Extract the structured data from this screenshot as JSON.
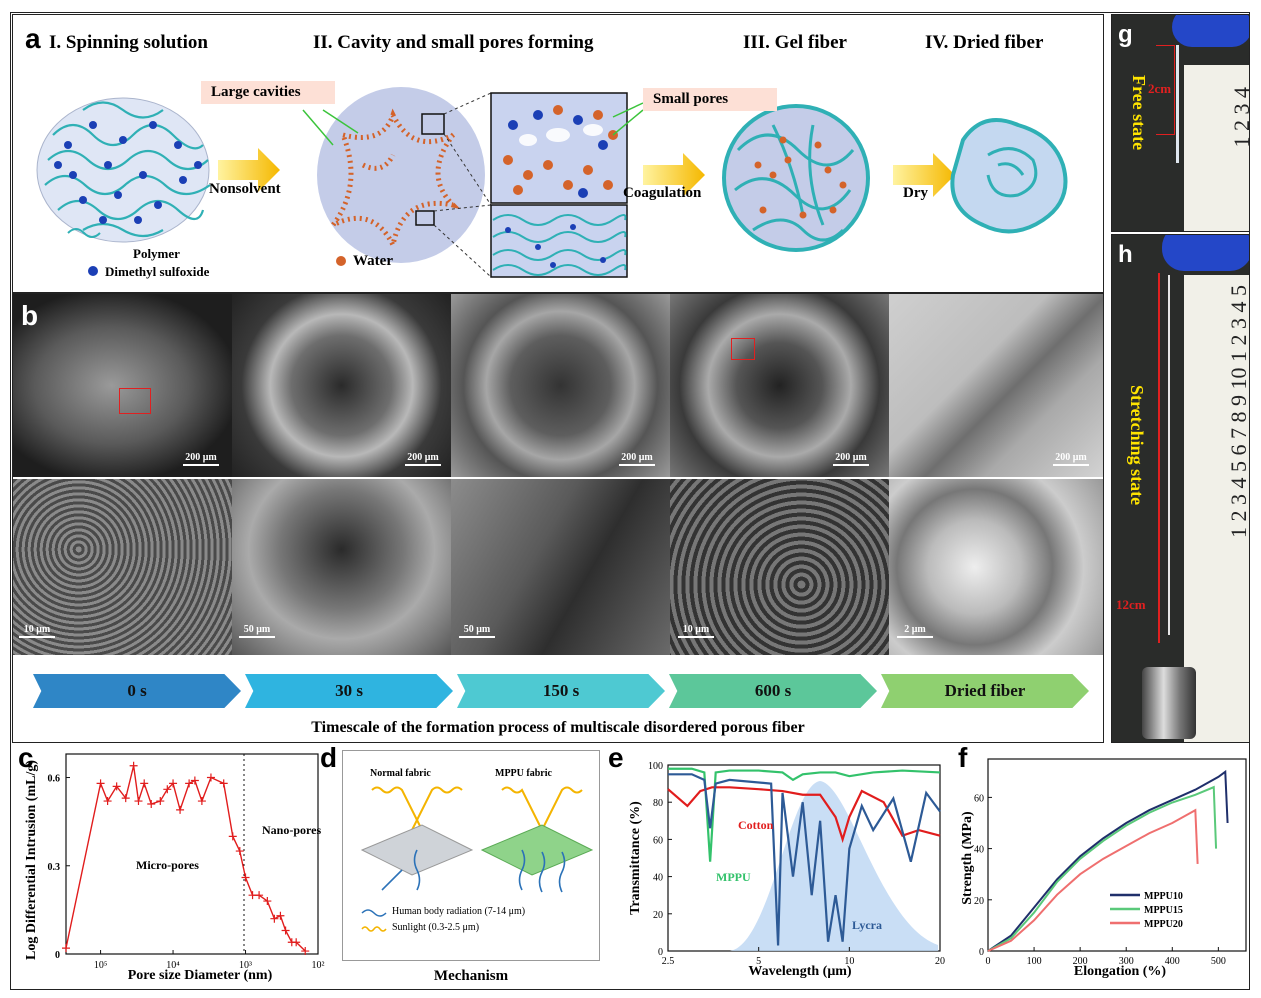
{
  "panel_a": {
    "label": "a",
    "stages": [
      "I. Spinning solution",
      "II. Cavity and small pores forming",
      "III. Gel fiber",
      "IV. Dried fiber"
    ],
    "large_cavities": "Large cavities",
    "small_pores": "Small pores",
    "nonsolvent": "Nonsolvent",
    "coagulation": "Coagulation",
    "dry": "Dry",
    "legend_polymer": "Polymer",
    "legend_dmso": "Dimethyl sulfoxide",
    "legend_water": "Water"
  },
  "panel_b": {
    "label": "b",
    "top_scales": [
      "200 μm",
      "200 μm",
      "200 μm",
      "200 μm",
      "200 μm"
    ],
    "bottom_scales": [
      "10 μm",
      "50 μm",
      "50 μm",
      "10 μm",
      "2 μm"
    ],
    "steps": [
      "0 s",
      "30 s",
      "150 s",
      "600 s",
      "Dried fiber"
    ],
    "step_colors": [
      "#2f86c6",
      "#2fb4e0",
      "#4ec9d2",
      "#5cc79a",
      "#8fd070"
    ],
    "timescale_caption": "Timescale of the formation process of multiscale disordered porous fiber"
  },
  "panel_g": {
    "label": "g",
    "state": "Free state",
    "length": "2cm",
    "ruler": [
      "1",
      "2",
      "3",
      "4"
    ]
  },
  "panel_h": {
    "label": "h",
    "state": "Stretching state",
    "length": "12cm",
    "ruler": [
      "1",
      "2",
      "3",
      "4",
      "5",
      "6",
      "7",
      "8",
      "9",
      "10",
      "1",
      "2",
      "3",
      "4",
      "5"
    ]
  },
  "panel_c": {
    "label": "c",
    "ylabel": "Log Differential Intrusion (mL/g)",
    "xlabel": "Pore size Diameter (nm)",
    "micro": "Micro-pores",
    "nano": "Nano-pores",
    "yticks": [
      "0",
      "0.3",
      "0.6"
    ],
    "xticks": [
      "10⁵",
      "10⁴",
      "10³",
      "10²"
    ]
  },
  "panel_d": {
    "label": "d",
    "normal": "Normal fabric",
    "mppu": "MPPU fabric",
    "legend_body": "Human body radiation (7-14 μm)",
    "legend_sun": "Sunlight (0.3-2.5 μm)",
    "caption": "Mechanism"
  },
  "panel_e": {
    "label": "e",
    "ylabel": "Transmittance (%)",
    "xlabel": "Wavelength (μm)",
    "yticks": [
      "0",
      "20",
      "40",
      "60",
      "80",
      "100"
    ],
    "xticks": [
      "2.5",
      "5",
      "10",
      "20"
    ],
    "series": [
      "Cotton",
      "MPPU",
      "Lycra"
    ]
  },
  "panel_f": {
    "label": "f",
    "ylabel": "Strength (MPa)",
    "xlabel": "Elongation (%)",
    "yticks": [
      "0",
      "20",
      "40",
      "60"
    ],
    "xticks": [
      "0",
      "100",
      "200",
      "300",
      "400",
      "500"
    ],
    "legend": [
      "MPPU10",
      "MPPU15",
      "MPPU20"
    ],
    "colors": [
      "#1f2f6b",
      "#5ac97a",
      "#ef6f6f"
    ]
  },
  "chart_data": [
    {
      "type": "scatter",
      "panel": "c",
      "xlabel": "Pore size Diameter (nm)",
      "ylabel": "Log Differential Intrusion (mL/g)",
      "x_scale": "log-reversed",
      "xlim": [
        300000,
        100
      ],
      "ylim": [
        0,
        0.68
      ],
      "series": [
        {
          "x": [
            300000,
            100000,
            80000,
            60000,
            45000,
            35000,
            30000,
            25000,
            20000,
            15000,
            12000,
            10000,
            8000,
            6000,
            5000,
            4000,
            3000,
            2000,
            1500,
            1200,
            1000,
            800,
            650,
            500,
            400,
            330,
            280,
            230,
            200,
            150
          ],
          "y": [
            0.02,
            0.58,
            0.52,
            0.57,
            0.53,
            0.64,
            0.52,
            0.58,
            0.51,
            0.52,
            0.56,
            0.58,
            0.49,
            0.58,
            0.59,
            0.52,
            0.6,
            0.58,
            0.4,
            0.35,
            0.26,
            0.2,
            0.2,
            0.18,
            0.12,
            0.13,
            0.08,
            0.04,
            0.04,
            0.01
          ]
        }
      ]
    },
    {
      "type": "line",
      "panel": "e",
      "xlabel": "Wavelength (μm)",
      "ylabel": "Transmittance (%)",
      "xlim": [
        2.5,
        20
      ],
      "ylim": [
        0,
        100
      ],
      "series": [
        {
          "name": "MPPU",
          "color": "#33c26b",
          "x": [
            2.5,
            3,
            3.3,
            3.45,
            3.6,
            4,
            5,
            6,
            6.5,
            7,
            8,
            9,
            10,
            12,
            15,
            20
          ],
          "y": [
            98,
            98,
            96,
            48,
            96,
            97,
            97,
            96,
            92,
            95,
            96,
            96,
            94,
            96,
            97,
            96
          ]
        },
        {
          "name": "Cotton",
          "color": "#e11d1d",
          "x": [
            2.5,
            2.9,
            3.2,
            3.5,
            4,
            5,
            6,
            7,
            8,
            9,
            9.5,
            10,
            11,
            13,
            15,
            17,
            20
          ],
          "y": [
            87,
            78,
            86,
            88,
            88,
            87,
            86,
            84,
            84,
            72,
            60,
            72,
            86,
            80,
            62,
            65,
            62
          ]
        },
        {
          "name": "Lycra",
          "color": "#2d5a96",
          "x": [
            2.5,
            3,
            3.3,
            3.45,
            3.6,
            4,
            5.5,
            5.8,
            6,
            6.5,
            7,
            7.5,
            8,
            8.5,
            9,
            9.5,
            10,
            11,
            12,
            14,
            16,
            18,
            20
          ],
          "y": [
            95,
            95,
            92,
            66,
            90,
            92,
            90,
            3,
            85,
            40,
            80,
            30,
            70,
            5,
            30,
            5,
            55,
            78,
            65,
            82,
            48,
            85,
            75
          ]
        }
      ]
    },
    {
      "type": "line",
      "panel": "f",
      "xlabel": "Elongation (%)",
      "ylabel": "Strength (MPa)",
      "xlim": [
        0,
        560
      ],
      "ylim": [
        0,
        75
      ],
      "series": [
        {
          "name": "MPPU10",
          "color": "#1f2f6b",
          "x": [
            0,
            50,
            100,
            150,
            200,
            250,
            300,
            350,
            400,
            450,
            500,
            515,
            520
          ],
          "y": [
            0,
            6,
            17,
            28,
            37,
            44,
            50,
            55,
            59,
            63,
            68,
            70,
            50
          ]
        },
        {
          "name": "MPPU15",
          "color": "#5ac97a",
          "x": [
            0,
            50,
            100,
            150,
            200,
            250,
            300,
            350,
            400,
            450,
            490,
            495
          ],
          "y": [
            0,
            5,
            15,
            27,
            36,
            43,
            49,
            54,
            58,
            61,
            64,
            40
          ]
        },
        {
          "name": "MPPU20",
          "color": "#ef6f6f",
          "x": [
            0,
            50,
            100,
            150,
            200,
            250,
            300,
            350,
            400,
            440,
            450,
            455
          ],
          "y": [
            0,
            4,
            12,
            22,
            30,
            36,
            41,
            46,
            50,
            54,
            55,
            34
          ]
        }
      ]
    }
  ]
}
